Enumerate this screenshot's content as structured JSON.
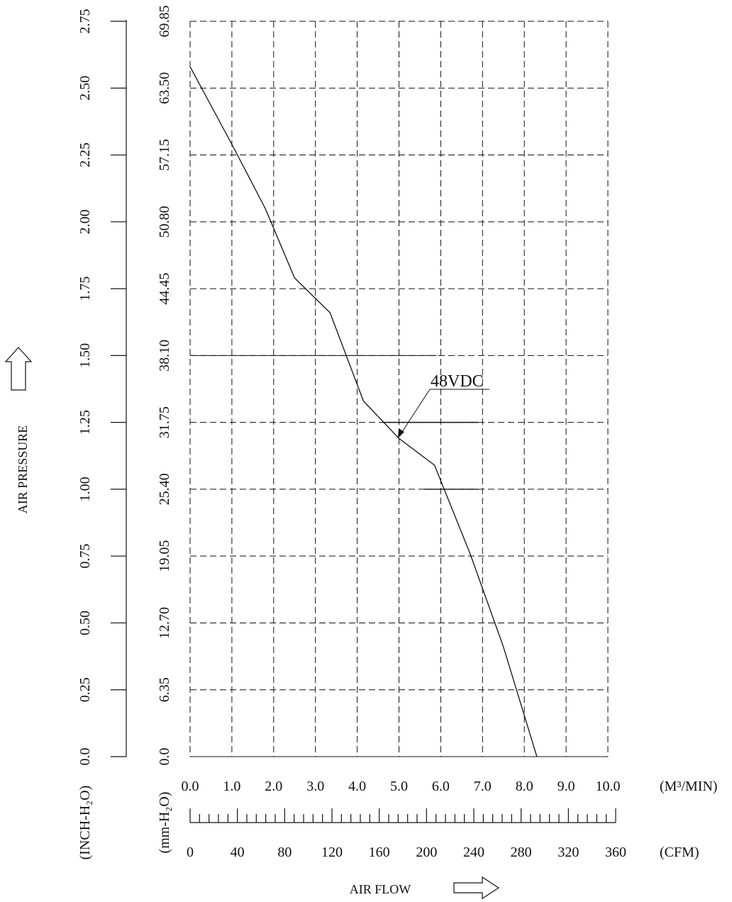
{
  "chart_data": {
    "type": "line",
    "xlabel": "AIR FLOW",
    "ylabel": "AIR PRESSURE",
    "x_unit_m3": "(M³/MIN)",
    "x_unit_cfm": "(CFM)",
    "y_unit_inch": "(INCH-H₂O)",
    "y_unit_mm": "(mm-H₂O)",
    "xlim": [
      0,
      10
    ],
    "ylim": [
      0,
      2.75
    ],
    "x_ticks": [
      "0.0",
      "1.0",
      "2.0",
      "3.0",
      "4.0",
      "5.0",
      "6.0",
      "7.0",
      "8.0",
      "9.0",
      "10.0"
    ],
    "x_ticks_cfm": [
      "0",
      "40",
      "80",
      "120",
      "160",
      "200",
      "240",
      "280",
      "320",
      "360"
    ],
    "y_ticks_inch": [
      "0.0",
      "0.25",
      "0.50",
      "0.75",
      "1.00",
      "1.25",
      "1.50",
      "1.75",
      "2.00",
      "2.25",
      "2.50",
      "2.75"
    ],
    "y_ticks_mm": [
      "0.0",
      "6.35",
      "12.70",
      "19.05",
      "25.40",
      "31.75",
      "38.10",
      "44.45",
      "50.80",
      "57.15",
      "63.50",
      "69.85"
    ],
    "series": [
      {
        "name": "48VDC",
        "x": [
          0.0,
          1.0,
          1.8,
          2.5,
          3.35,
          4.15,
          5.0,
          5.85,
          6.7,
          7.5,
          8.3
        ],
        "y": [
          2.58,
          2.29,
          2.05,
          1.79,
          1.66,
          1.33,
          1.19,
          1.09,
          0.76,
          0.41,
          0.0
        ]
      }
    ],
    "annotation": "48VDC",
    "grid": true
  }
}
